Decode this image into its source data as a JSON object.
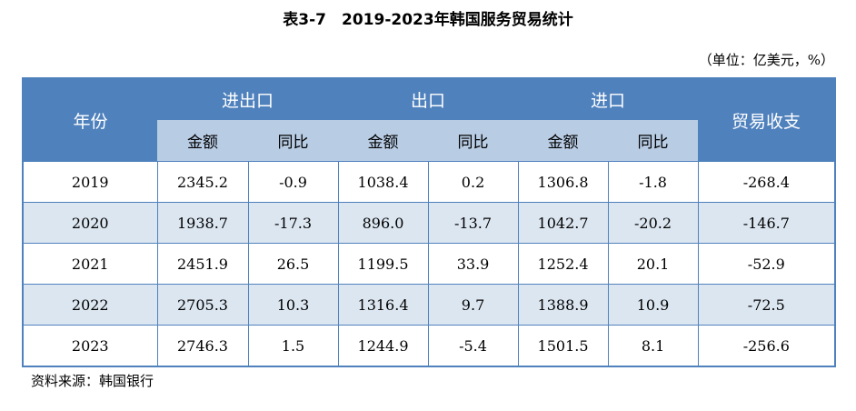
{
  "title": "表3-7　2019-2023年韩国服务贸易统计",
  "unit": "（单位：亿美元，%）",
  "header": {
    "year": "年份",
    "groups": [
      "进出口",
      "出口",
      "进口"
    ],
    "balance": "贸易收支",
    "amount": "金额",
    "yoy": "同比"
  },
  "rows": [
    [
      "2019",
      "2345.2",
      "-0.9",
      "1038.4",
      "0.2",
      "1306.8",
      "-1.8",
      "-268.4"
    ],
    [
      "2020",
      "1938.7",
      "-17.3",
      "896.0",
      "-13.7",
      "1042.7",
      "-20.2",
      "-146.7"
    ],
    [
      "2021",
      "2451.9",
      "26.5",
      "1199.5",
      "33.9",
      "1252.4",
      "20.1",
      "-52.9"
    ],
    [
      "2022",
      "2705.3",
      "10.3",
      "1316.4",
      "9.7",
      "1388.9",
      "10.9",
      "-72.5"
    ],
    [
      "2023",
      "2746.3",
      "1.5",
      "1244.9",
      "-5.4",
      "1501.5",
      "8.1",
      "-256.6"
    ]
  ],
  "source": "资料来源：韩国银行"
}
